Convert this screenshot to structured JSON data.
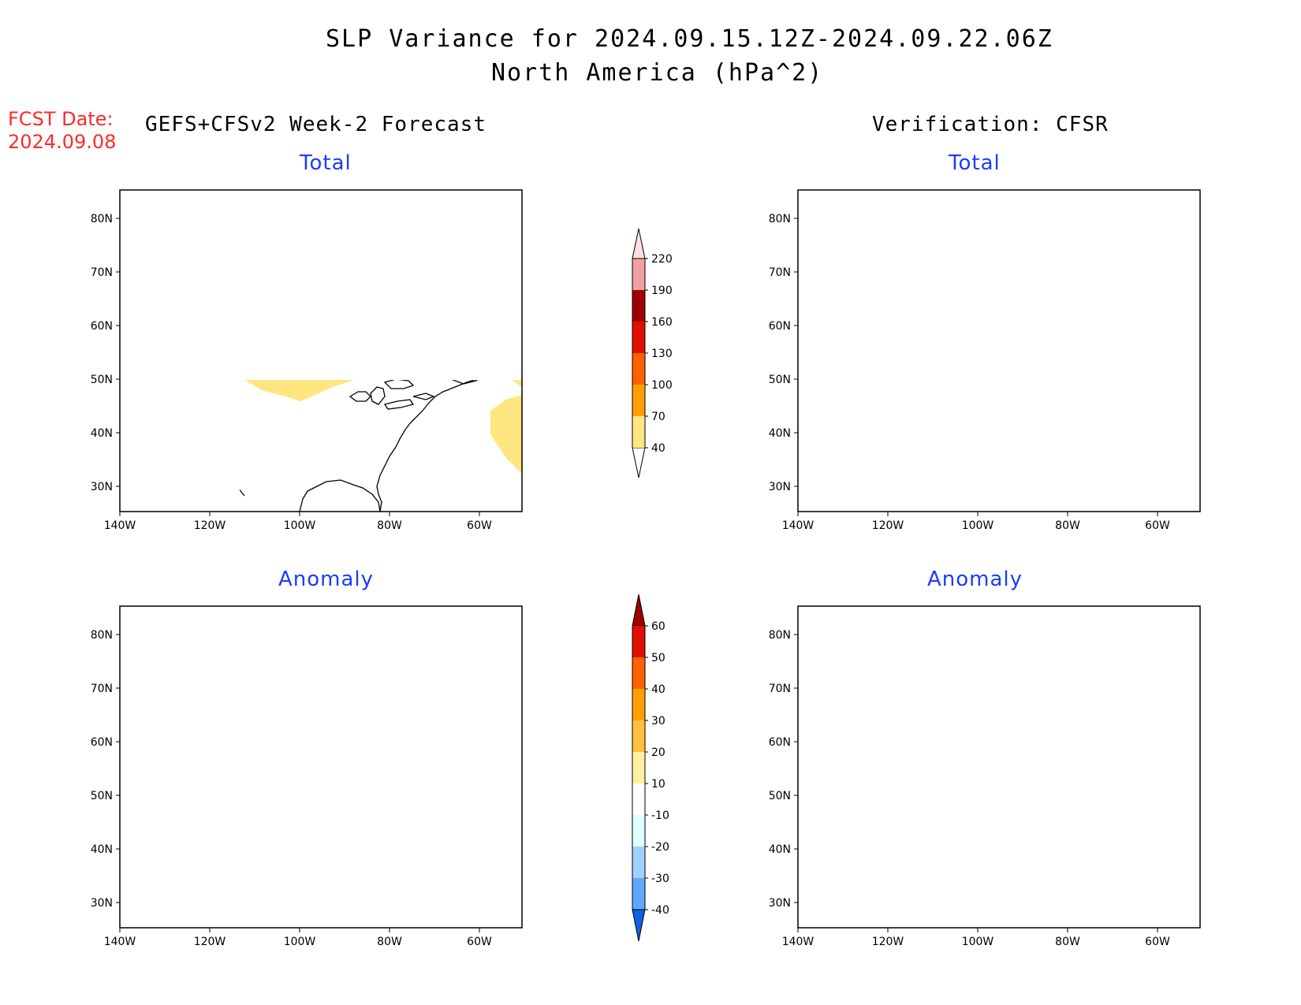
{
  "title": {
    "line1": "SLP Variance for 2024.09.15.12Z-2024.09.22.06Z",
    "line2": "North America (hPa^2)"
  },
  "fcst_date": {
    "label": "FCST Date:",
    "value": "2024.09.08"
  },
  "headers": {
    "forecast": "GEFS+CFSv2 Week-2 Forecast",
    "verification": "Verification: CFSR"
  },
  "panels": [
    {
      "id": "fcst-total",
      "label": "Total"
    },
    {
      "id": "verif-total",
      "label": "Total"
    },
    {
      "id": "fcst-anom",
      "label": "Anomaly"
    },
    {
      "id": "verif-anom",
      "label": "Anomaly"
    }
  ],
  "axes": {
    "lat_labels": [
      "80N",
      "70N",
      "60N",
      "50N",
      "40N",
      "30N"
    ],
    "lon_labels": [
      "140W",
      "120W",
      "100W",
      "80W",
      "60W"
    ]
  },
  "colorbar_total": {
    "levels": [
      "40",
      "70",
      "100",
      "130",
      "160",
      "190",
      "220"
    ],
    "colors": [
      "#ffe680",
      "#ffa000",
      "#ff6000",
      "#e01000",
      "#a00000",
      "#f0a0a0",
      "#ffe0e0"
    ]
  },
  "colorbar_anom": {
    "levels": [
      "60",
      "50",
      "40",
      "30",
      "20",
      "10",
      "-10",
      "-20",
      "-30",
      "-40"
    ],
    "colors": [
      "#a00000",
      "#e01000",
      "#ff6000",
      "#ffa000",
      "#ffc040",
      "#fff0a0",
      "#ffffff",
      "#e0ffff",
      "#a0d0ff",
      "#60a8ff",
      "#1e78f0",
      "#1060e0"
    ]
  }
}
